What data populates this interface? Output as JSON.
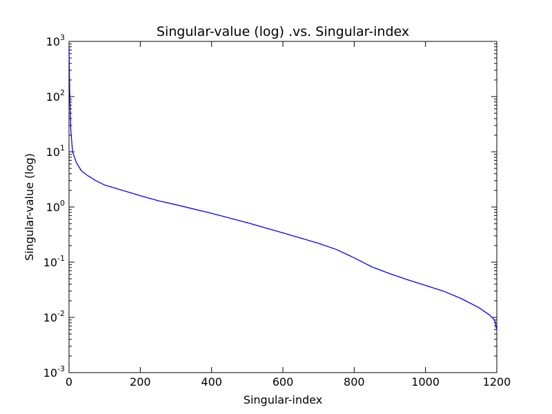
{
  "chart_data": {
    "type": "line",
    "title": "Singular-value (log) .vs. Singular-index",
    "xlabel": "Singular-index",
    "ylabel": "Singular-value (log)",
    "xlim": [
      0,
      1200
    ],
    "ylim": [
      0.001,
      1000
    ],
    "y_scale": "log",
    "grid": false,
    "legend": "none",
    "x_ticks": [
      "0",
      "200",
      "400",
      "600",
      "800",
      "1000",
      "1200"
    ],
    "y_ticks": [
      {
        "value": 0.001,
        "base": "10",
        "exp": "-3"
      },
      {
        "value": 0.01,
        "base": "10",
        "exp": "-2"
      },
      {
        "value": 0.1,
        "base": "10",
        "exp": "-1"
      },
      {
        "value": 1,
        "base": "10",
        "exp": "0"
      },
      {
        "value": 10,
        "base": "10",
        "exp": "1"
      },
      {
        "value": 100,
        "base": "10",
        "exp": "2"
      },
      {
        "value": 1000,
        "base": "10",
        "exp": "3"
      }
    ],
    "series": [
      {
        "color": "#0000ff",
        "x": [
          0,
          2,
          5,
          10,
          20,
          35,
          50,
          75,
          100,
          150,
          200,
          250,
          300,
          400,
          500,
          600,
          700,
          750,
          800,
          850,
          900,
          950,
          1000,
          1050,
          1100,
          1150,
          1180,
          1190,
          1195,
          1199
        ],
        "y": [
          800,
          120,
          25,
          10,
          6.5,
          4.5,
          3.8,
          3.0,
          2.5,
          2.0,
          1.6,
          1.3,
          1.1,
          0.77,
          0.52,
          0.34,
          0.22,
          0.17,
          0.12,
          0.082,
          0.062,
          0.048,
          0.038,
          0.03,
          0.022,
          0.015,
          0.011,
          0.0095,
          0.0085,
          0.0062
        ]
      }
    ]
  }
}
